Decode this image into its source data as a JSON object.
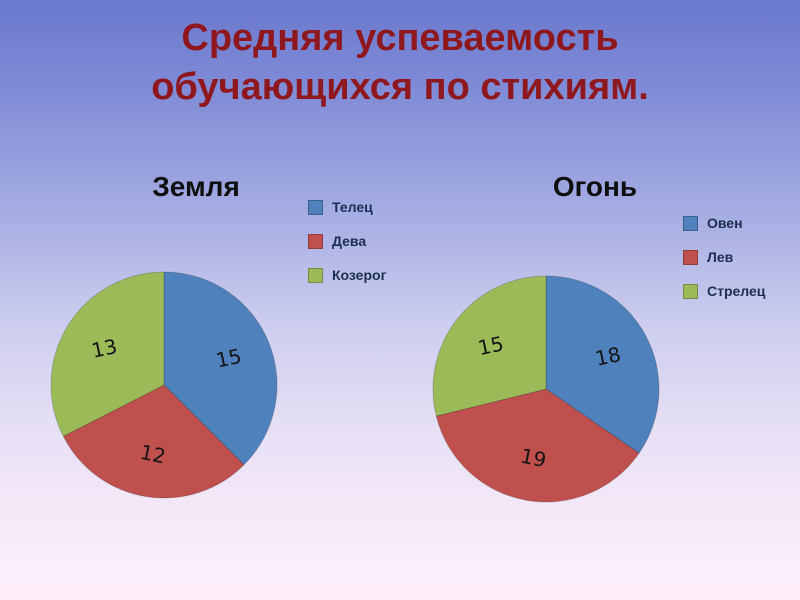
{
  "slide": {
    "title": "Средняя успеваемость обучающихся по стихиям."
  },
  "chart_data": [
    {
      "type": "pie",
      "title": "Земля",
      "labels": [
        "Телец",
        "Дева",
        "Козерог"
      ],
      "values": [
        15,
        12,
        13
      ],
      "colors": [
        "#4f81bd",
        "#c0504d",
        "#9bbb59"
      ],
      "legend_position": "right",
      "data_labels": "values"
    },
    {
      "type": "pie",
      "title": "Огонь",
      "labels": [
        "Овен",
        "Лев",
        "Стрелец"
      ],
      "values": [
        18,
        19,
        15
      ],
      "colors": [
        "#4f81bd",
        "#c0504d",
        "#9bbb59"
      ],
      "legend_position": "right",
      "data_labels": "values"
    }
  ]
}
